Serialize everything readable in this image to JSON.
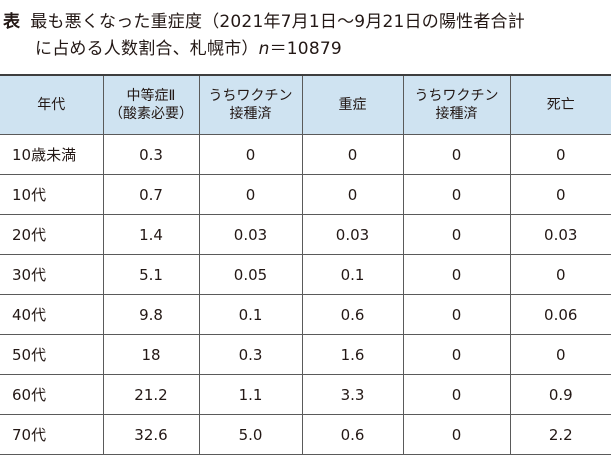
{
  "caption": {
    "label": "表",
    "line1": "最も悪くなった重症度（2021年7月1日～9月21日の陽性者合計",
    "line2_prefix": "に占める人数割合、札幌市）",
    "n_symbol": "n",
    "n_value": "＝10879"
  },
  "table": {
    "headers": [
      [
        "年代"
      ],
      [
        "中等症Ⅱ",
        "（酸素必要）"
      ],
      [
        "うちワクチン",
        "接種済"
      ],
      [
        "重症"
      ],
      [
        "うちワクチン",
        "接種済"
      ],
      [
        "死亡"
      ]
    ],
    "rows": [
      [
        "10歳未満",
        "0.3",
        "0",
        "0",
        "0",
        "0"
      ],
      [
        "10代",
        "0.7",
        "0",
        "0",
        "0",
        "0"
      ],
      [
        "20代",
        "1.4",
        "0.03",
        "0.03",
        "0",
        "0.03"
      ],
      [
        "30代",
        "5.1",
        "0.05",
        "0.1",
        "0",
        "0"
      ],
      [
        "40代",
        "9.8",
        "0.1",
        "0.6",
        "0",
        "0.06"
      ],
      [
        "50代",
        "18",
        "0.3",
        "1.6",
        "0",
        "0"
      ],
      [
        "60代",
        "21.2",
        "1.1",
        "3.3",
        "0",
        "0.9"
      ],
      [
        "70代",
        "32.6",
        "5.0",
        "0.6",
        "0",
        "2.2"
      ]
    ]
  },
  "colors": {
    "header_bg": "#cfe3f1",
    "text": "#231815",
    "border": "#5a5a5a"
  }
}
